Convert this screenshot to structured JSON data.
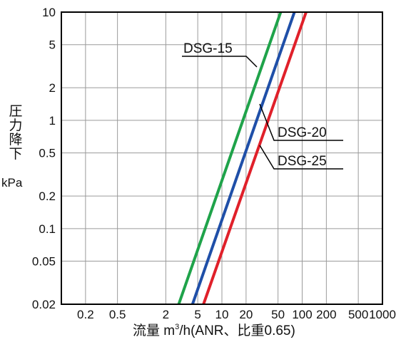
{
  "chart_data": {
    "type": "line",
    "x_scale": "log",
    "y_scale": "log",
    "xlim": [
      0.1,
      1000
    ],
    "ylim": [
      0.02,
      10
    ],
    "grid": true,
    "xlabel_main": "流量 m",
    "xlabel_sup": "3",
    "xlabel_rest": "/h(ANR、比重0.65)",
    "ylabel": "圧力降下",
    "yunit": "kPa",
    "x_ticks": [
      {
        "v": 0.2,
        "label": "0.2"
      },
      {
        "v": 0.5,
        "label": "0.5"
      },
      {
        "v": 2,
        "label": "2"
      },
      {
        "v": 5,
        "label": "5"
      },
      {
        "v": 10,
        "label": "10"
      },
      {
        "v": 20,
        "label": "20"
      },
      {
        "v": 50,
        "label": "50"
      },
      {
        "v": 100,
        "label": "100"
      },
      {
        "v": 200,
        "label": "200"
      },
      {
        "v": 500,
        "label": "500"
      },
      {
        "v": 1000,
        "label": "1000"
      }
    ],
    "y_ticks": [
      {
        "v": 0.02,
        "label": "0.02"
      },
      {
        "v": 0.05,
        "label": "0.05"
      },
      {
        "v": 0.1,
        "label": "0.1"
      },
      {
        "v": 0.2,
        "label": "0.2"
      },
      {
        "v": 0.5,
        "label": "0.5"
      },
      {
        "v": 1,
        "label": "1"
      },
      {
        "v": 2,
        "label": "2"
      },
      {
        "v": 5,
        "label": "5"
      },
      {
        "v": 10,
        "label": "10"
      }
    ],
    "series": [
      {
        "name": "DSG-15",
        "color": "#1fa34a",
        "x": [
          2.9,
          54
        ],
        "y": [
          0.02,
          10
        ]
      },
      {
        "name": "DSG-20",
        "color": "#1f4fa8",
        "x": [
          4.3,
          80
        ],
        "y": [
          0.02,
          10
        ]
      },
      {
        "name": "DSG-25",
        "color": "#e0202a",
        "x": [
          5.9,
          112
        ],
        "y": [
          0.02,
          10
        ]
      }
    ]
  }
}
